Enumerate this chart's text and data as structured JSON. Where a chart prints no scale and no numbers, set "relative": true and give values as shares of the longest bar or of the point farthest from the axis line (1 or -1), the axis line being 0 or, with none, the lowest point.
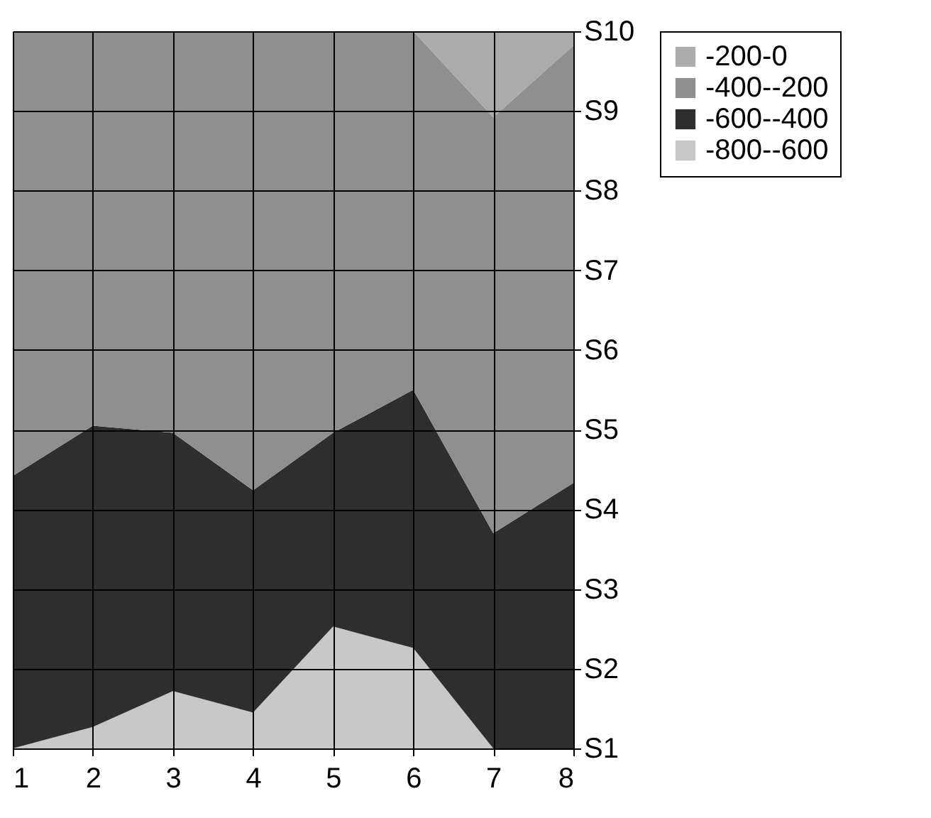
{
  "chart_data": {
    "type": "area",
    "stacked": true,
    "relative": true,
    "x": [
      1,
      2,
      3,
      4,
      5,
      6,
      7,
      8
    ],
    "series": [
      {
        "name": "-800--600",
        "color": "#c8c8c8",
        "values": [
          0,
          0.03,
          0.08,
          0.05,
          0.17,
          0.14,
          0,
          0
        ]
      },
      {
        "name": "-600--400",
        "color": "#2e2e2e",
        "values": [
          0.38,
          0.42,
          0.36,
          0.31,
          0.27,
          0.36,
          0.3,
          0.37
        ]
      },
      {
        "name": "-400--200",
        "color": "#8f8f8f",
        "values": [
          0.62,
          0.55,
          0.56,
          0.64,
          0.56,
          0.5,
          0.58,
          0.61
        ]
      },
      {
        "name": "-200-0",
        "color": "#ababab",
        "values": [
          0,
          0,
          0,
          0,
          0,
          0,
          0.12,
          0.02
        ]
      }
    ],
    "annotations": [
      "S1",
      "S2",
      "S3",
      "S4",
      "S5",
      "S6",
      "S7",
      "S8",
      "S9",
      "S10"
    ],
    "xlim": [
      1,
      8
    ],
    "xticks": [
      1,
      2,
      3,
      4,
      5,
      6,
      7,
      8
    ],
    "grid": true,
    "legend": "right"
  }
}
